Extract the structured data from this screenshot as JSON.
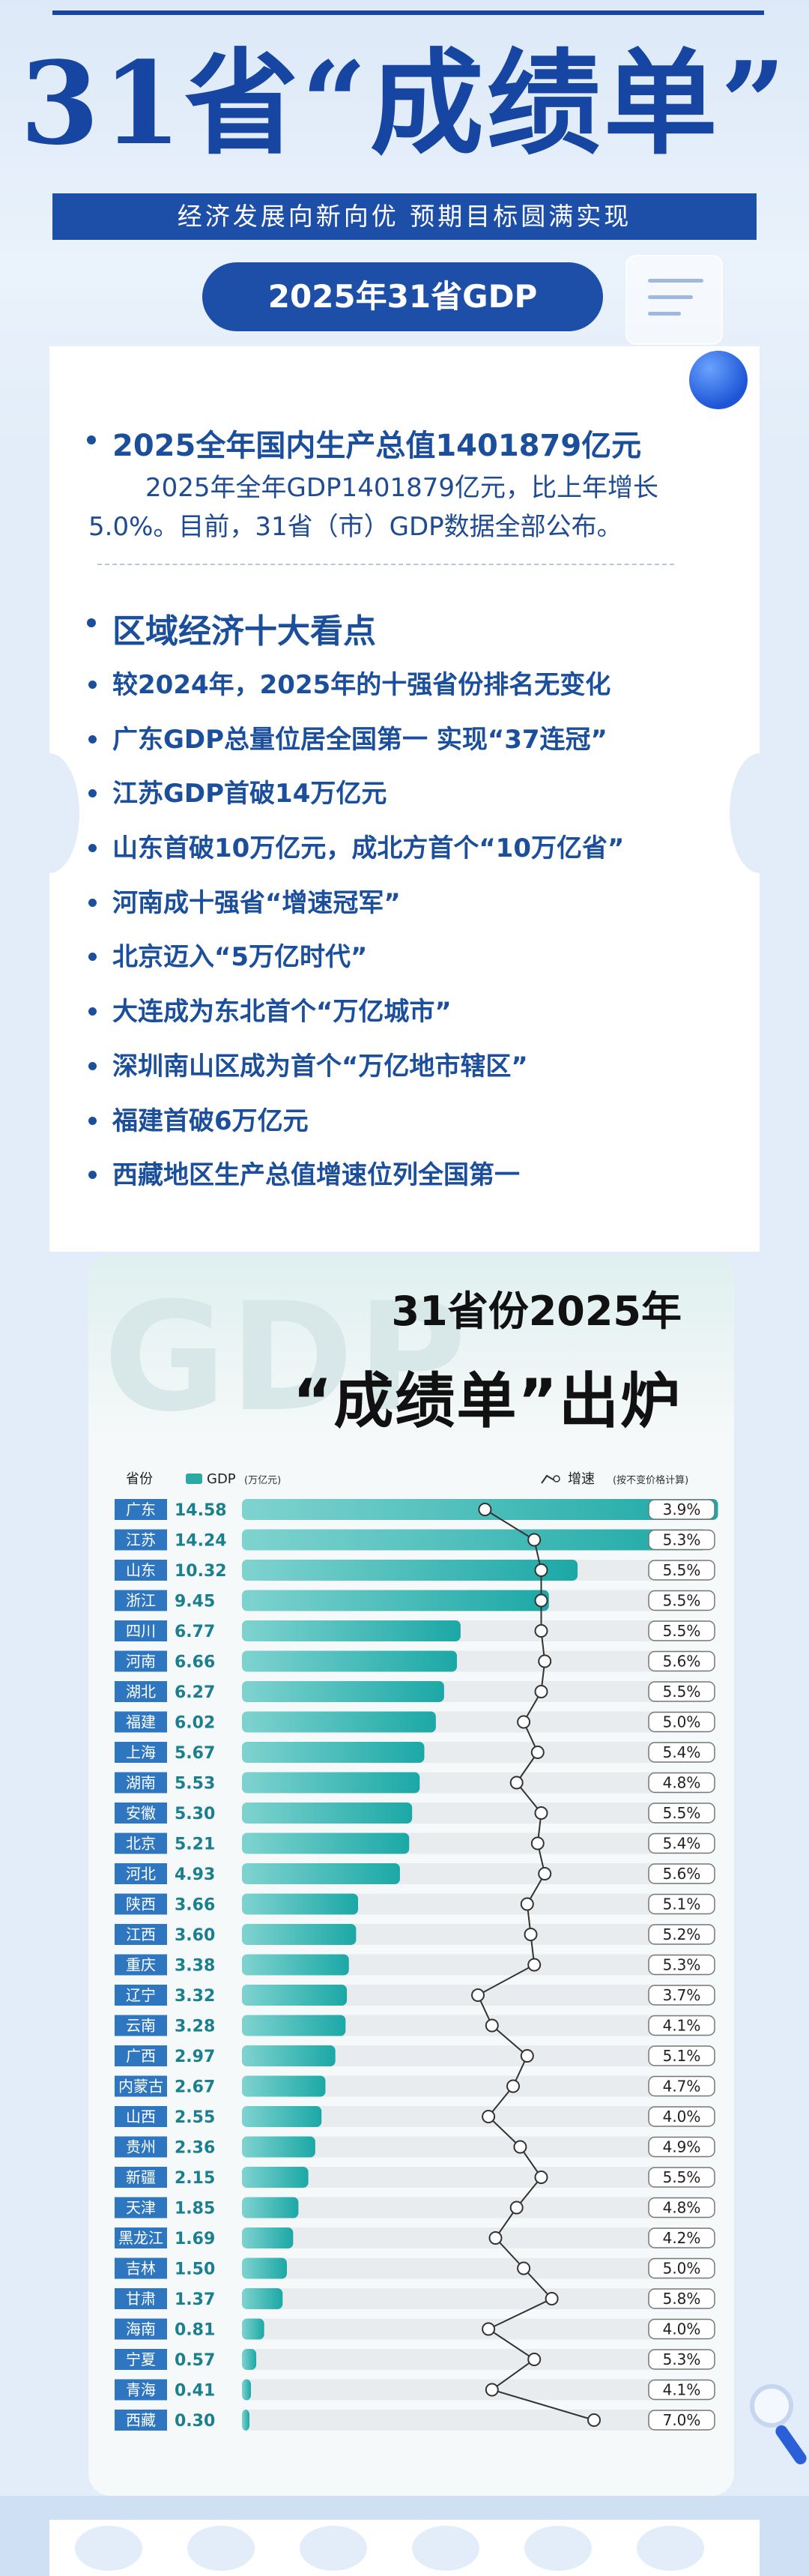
{
  "header": {
    "main_title": "31省“成绩单”",
    "subtitle": "经济发展向新向优 预期目标圆满实现",
    "pill_label": "2025年31省GDP"
  },
  "section1": {
    "title": "2025全年国内生产总值1401879亿元",
    "paragraph": "2025年全年GDP1401879亿元，比上年增长5.0%。目前，31省（市）GDP数据全部公布。"
  },
  "section2": {
    "title": "区域经济十大看点",
    "bullets": [
      "较2024年，2025年的十强省份排名无变化",
      "广东GDP总量位居全国第一  实现“37连冠”",
      "江苏GDP首破14万亿元",
      "山东首破10万亿元，成北方首个“10万亿省”",
      "河南成十强省“增速冠军”",
      "北京迈入“5万亿时代”",
      "大连成为东北首个“万亿城市”",
      "深圳南山区成为首个“万亿地市辖区”",
      "福建首破6万亿元",
      "西藏地区生产总值增速位列全国第一"
    ]
  },
  "chart_header": {
    "watermark": "GDP",
    "title_line1": "31省份2025年",
    "title_line2": "“成绩单”出炉"
  },
  "chart_data": {
    "type": "bar",
    "legend_province": "省份",
    "legend_gdp": "GDP",
    "legend_gdp_unit": "(万亿元)",
    "legend_growth": "增速",
    "legend_growth_note": "(按不变价格计算)",
    "colors": {
      "bar_start": "#7fd3cf",
      "bar_end": "#1ba8a6",
      "label_bg": "#2f76c0",
      "track": "#e9ecef",
      "line": "#333333"
    },
    "xlim": [
      0,
      15
    ],
    "categories": [
      "广东",
      "江苏",
      "山东",
      "浙江",
      "四川",
      "河南",
      "湖北",
      "福建",
      "上海",
      "湖南",
      "安徽",
      "北京",
      "河北",
      "陕西",
      "江西",
      "重庆",
      "辽宁",
      "云南",
      "广西",
      "内蒙古",
      "山西",
      "贵州",
      "新疆",
      "天津",
      "黑龙江",
      "吉林",
      "甘肃",
      "海南",
      "宁夏",
      "青海",
      "西藏"
    ],
    "gdp": [
      "14.58",
      "14.24",
      "10.32",
      "9.45",
      "6.77",
      "6.66",
      "6.27",
      "6.02",
      "5.67",
      "5.53",
      "5.30",
      "5.21",
      "4.93",
      "3.66",
      "3.60",
      "3.38",
      "3.32",
      "3.28",
      "2.97",
      "2.67",
      "2.55",
      "2.36",
      "2.15",
      "1.85",
      "1.69",
      "1.50",
      "1.37",
      "0.81",
      "0.57",
      "0.41",
      "0.30"
    ],
    "growth": [
      "3.9%",
      "5.3%",
      "5.5%",
      "5.5%",
      "5.5%",
      "5.6%",
      "5.5%",
      "5.0%",
      "5.4%",
      "4.8%",
      "5.5%",
      "5.4%",
      "5.6%",
      "5.1%",
      "5.2%",
      "5.3%",
      "3.7%",
      "4.1%",
      "5.1%",
      "4.7%",
      "4.0%",
      "4.9%",
      "5.5%",
      "4.8%",
      "4.2%",
      "5.0%",
      "5.8%",
      "4.0%",
      "5.3%",
      "4.1%",
      "7.0%"
    ]
  }
}
